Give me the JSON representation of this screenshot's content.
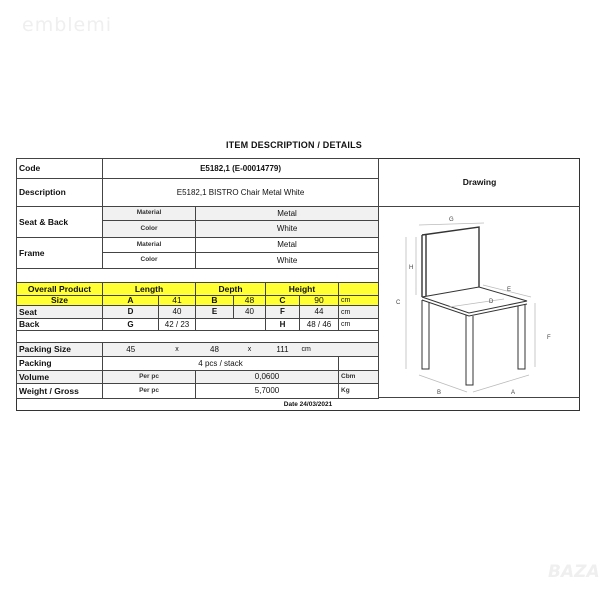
{
  "watermarks": {
    "top_left": "emblemi",
    "bottom_right": "BAZAR"
  },
  "title": "ITEM DESCRIPTION / DETAILS",
  "code": {
    "label": "Code",
    "value": "E5182,1 (E-00014779)"
  },
  "description": {
    "label": "Description",
    "value": "E5182,1 BISTRO Chair Metal White"
  },
  "seat_back": {
    "label": "Seat & Back",
    "material_label": "Material",
    "material": "Metal",
    "color_label": "Color",
    "color": "White"
  },
  "frame": {
    "label": "Frame",
    "material_label": "Material",
    "material": "Metal",
    "color_label": "Color",
    "color": "White"
  },
  "overall": {
    "label1": "Overall Product",
    "label2": "Size",
    "length_label": "Length",
    "depth_label": "Depth",
    "height_label": "Height",
    "a": "A",
    "a_val": "41",
    "b": "B",
    "b_val": "48",
    "c": "C",
    "c_val": "90",
    "unit": "cm"
  },
  "seat": {
    "label": "Seat",
    "d": "D",
    "d_val": "40",
    "e": "E",
    "e_val": "40",
    "f": "F",
    "f_val": "44",
    "unit": "cm"
  },
  "back": {
    "label": "Back",
    "g": "G",
    "g_val": "42 / 23",
    "h": "H",
    "h_val": "48 / 46",
    "unit": "cm"
  },
  "packing_size": {
    "label": "Packing Size",
    "l": "45",
    "x1": "x",
    "w": "48",
    "x2": "x",
    "h": "111",
    "unit": "cm"
  },
  "packing": {
    "label": "Packing",
    "value": "4 pcs / stack"
  },
  "volume": {
    "label": "Volume",
    "per": "Per pc",
    "value": "0,0600",
    "unit": "Cbm"
  },
  "weight": {
    "label": "Weight / Gross",
    "per": "Per pc",
    "value": "5,7000",
    "unit": "Kg"
  },
  "date": "Date 24/03/2021",
  "drawing": {
    "label": "Drawing",
    "dims": [
      "A",
      "B",
      "C",
      "D",
      "E",
      "F",
      "G",
      "H"
    ]
  }
}
